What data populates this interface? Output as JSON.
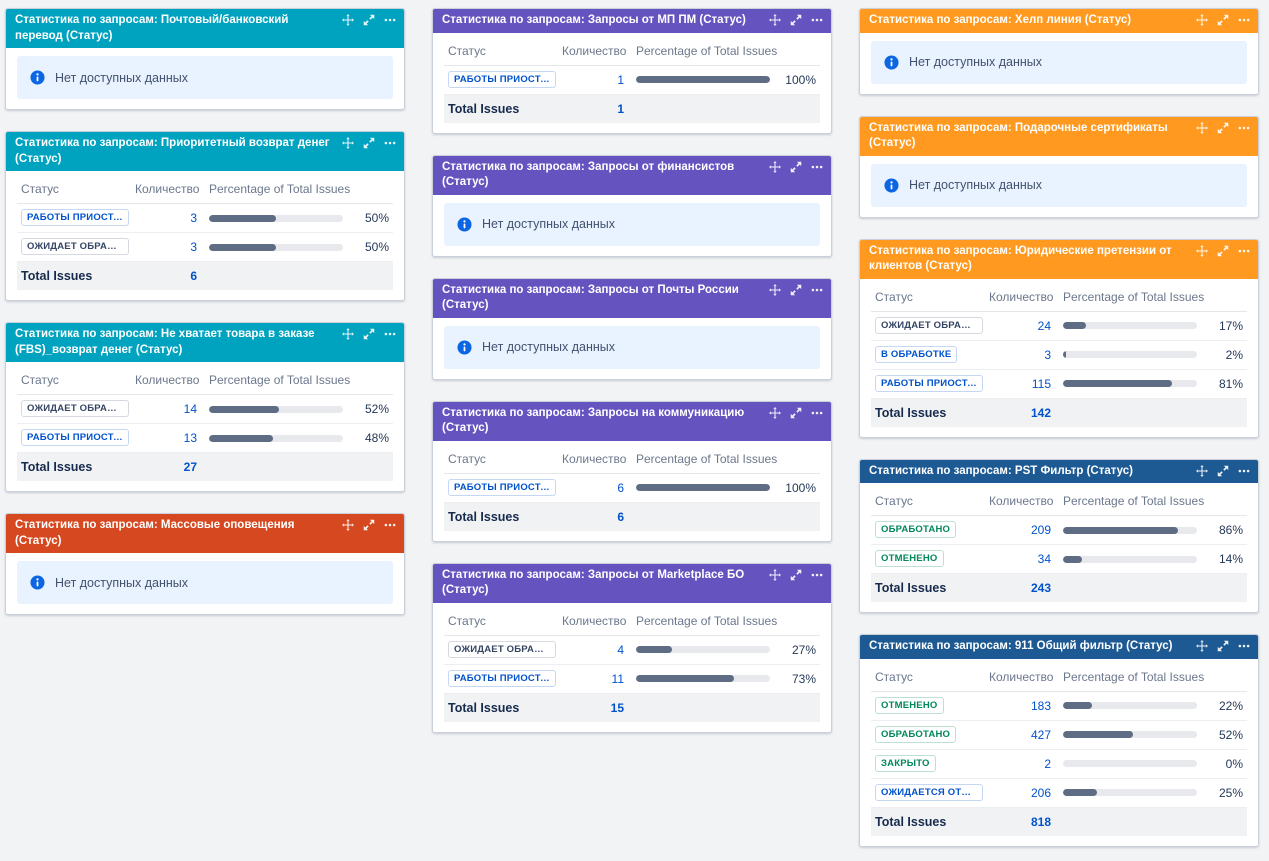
{
  "labels": {
    "status_header": "Статус",
    "count_header": "Количество",
    "pct_header": "Percentage of Total Issues",
    "total_label": "Total Issues",
    "no_data": "Нет доступных данных"
  },
  "header_colors": {
    "teal": "#00A3BF",
    "red": "#D6481F",
    "purple": "#6554C0",
    "orange": "#FF991F",
    "navy": "#1D5A94"
  },
  "bar_colors": {
    "fill": "#5E6C84",
    "track": "#E7E9EC"
  },
  "columns": [
    {
      "gadgets": [
        {
          "title": "Статистика по запросам: Почтовый/банковский перевод (Статус)",
          "color": "teal",
          "type": "empty"
        },
        {
          "title": "Статистика по запросам: Приоритетный возврат денег (Статус)",
          "color": "teal",
          "type": "table",
          "rows": [
            {
              "status": "РАБОТЫ ПРИОСТАНО...",
              "style": "blue",
              "count": "3",
              "pct": 50,
              "pct_label": "50%"
            },
            {
              "status": "ОЖИДАЕТ ОБРАБОТКИ",
              "style": "gray",
              "count": "3",
              "pct": 50,
              "pct_label": "50%"
            }
          ],
          "total": "6"
        },
        {
          "title": "Статистика по запросам: Не хватает товара в заказе (FBS)_возврат денег (Статус)",
          "color": "teal",
          "type": "table",
          "rows": [
            {
              "status": "ОЖИДАЕТ ОБРАБОТКИ",
              "style": "gray",
              "count": "14",
              "pct": 52,
              "pct_label": "52%"
            },
            {
              "status": "РАБОТЫ ПРИОСТАНО...",
              "style": "blue",
              "count": "13",
              "pct": 48,
              "pct_label": "48%"
            }
          ],
          "total": "27"
        },
        {
          "title": "Статистика по запросам: Массовые оповещения (Статус)",
          "color": "red",
          "type": "empty"
        }
      ]
    },
    {
      "gadgets": [
        {
          "title": "Статистика по запросам: Запросы от МП ПМ (Статус)",
          "color": "purple",
          "type": "table",
          "rows": [
            {
              "status": "РАБОТЫ ПРИОСТАНО...",
              "style": "blue",
              "count": "1",
              "pct": 100,
              "pct_label": "100%"
            }
          ],
          "total": "1"
        },
        {
          "title": "Статистика по запросам: Запросы от финансистов (Статус)",
          "color": "purple",
          "type": "empty"
        },
        {
          "title": "Статистика по запросам: Запросы от Почты России (Статус)",
          "color": "purple",
          "type": "empty"
        },
        {
          "title": "Статистика по запросам: Запросы на коммуникацию (Статус)",
          "color": "purple",
          "type": "table",
          "rows": [
            {
              "status": "РАБОТЫ ПРИОСТАНО...",
              "style": "blue",
              "count": "6",
              "pct": 100,
              "pct_label": "100%"
            }
          ],
          "total": "6"
        },
        {
          "title": "Статистика по запросам: Запросы от Marketplace БО (Статус)",
          "color": "purple",
          "type": "table",
          "rows": [
            {
              "status": "ОЖИДАЕТ ОБРАБОТКИ",
              "style": "gray",
              "count": "4",
              "pct": 27,
              "pct_label": "27%"
            },
            {
              "status": "РАБОТЫ ПРИОСТАНО...",
              "style": "blue",
              "count": "11",
              "pct": 73,
              "pct_label": "73%"
            }
          ],
          "total": "15"
        }
      ]
    },
    {
      "gadgets": [
        {
          "title": "Статистика по запросам: Хелп линия (Статус)",
          "color": "orange",
          "type": "empty"
        },
        {
          "title": "Статистика по запросам: Подарочные сертификаты (Статус)",
          "color": "orange",
          "type": "empty"
        },
        {
          "title": "Статистика по запросам: Юридические претензии от клиентов (Статус)",
          "color": "orange",
          "type": "table",
          "rows": [
            {
              "status": "ОЖИДАЕТ ОБРАБОТКИ",
              "style": "gray",
              "count": "24",
              "pct": 17,
              "pct_label": "17%"
            },
            {
              "status": "В ОБРАБОТКЕ",
              "style": "blue",
              "count": "3",
              "pct": 2,
              "pct_label": "2%"
            },
            {
              "status": "РАБОТЫ ПРИОСТАНО...",
              "style": "blue",
              "count": "115",
              "pct": 81,
              "pct_label": "81%"
            }
          ],
          "total": "142"
        },
        {
          "title": "Статистика по запросам: PST Фильтр (Статус)",
          "color": "navy",
          "type": "table",
          "rows": [
            {
              "status": "ОБРАБОТАНО",
              "style": "green",
              "count": "209",
              "pct": 86,
              "pct_label": "86%"
            },
            {
              "status": "ОТМЕНЕНО",
              "style": "green",
              "count": "34",
              "pct": 14,
              "pct_label": "14%"
            }
          ],
          "total": "243"
        },
        {
          "title": "Статистика по запросам: 911 Общий фильтр (Статус)",
          "color": "navy",
          "type": "table",
          "rows": [
            {
              "status": "ОТМЕНЕНО",
              "style": "green",
              "count": "183",
              "pct": 22,
              "pct_label": "22%"
            },
            {
              "status": "ОБРАБОТАНО",
              "style": "green",
              "count": "427",
              "pct": 52,
              "pct_label": "52%"
            },
            {
              "status": "ЗАКРЫТО",
              "style": "green",
              "count": "2",
              "pct": 0,
              "pct_label": "0%"
            },
            {
              "status": "ОЖИДАЕТСЯ ОТВЕТ П...",
              "style": "blue",
              "count": "206",
              "pct": 25,
              "pct_label": "25%"
            }
          ],
          "total": "818"
        }
      ]
    }
  ]
}
